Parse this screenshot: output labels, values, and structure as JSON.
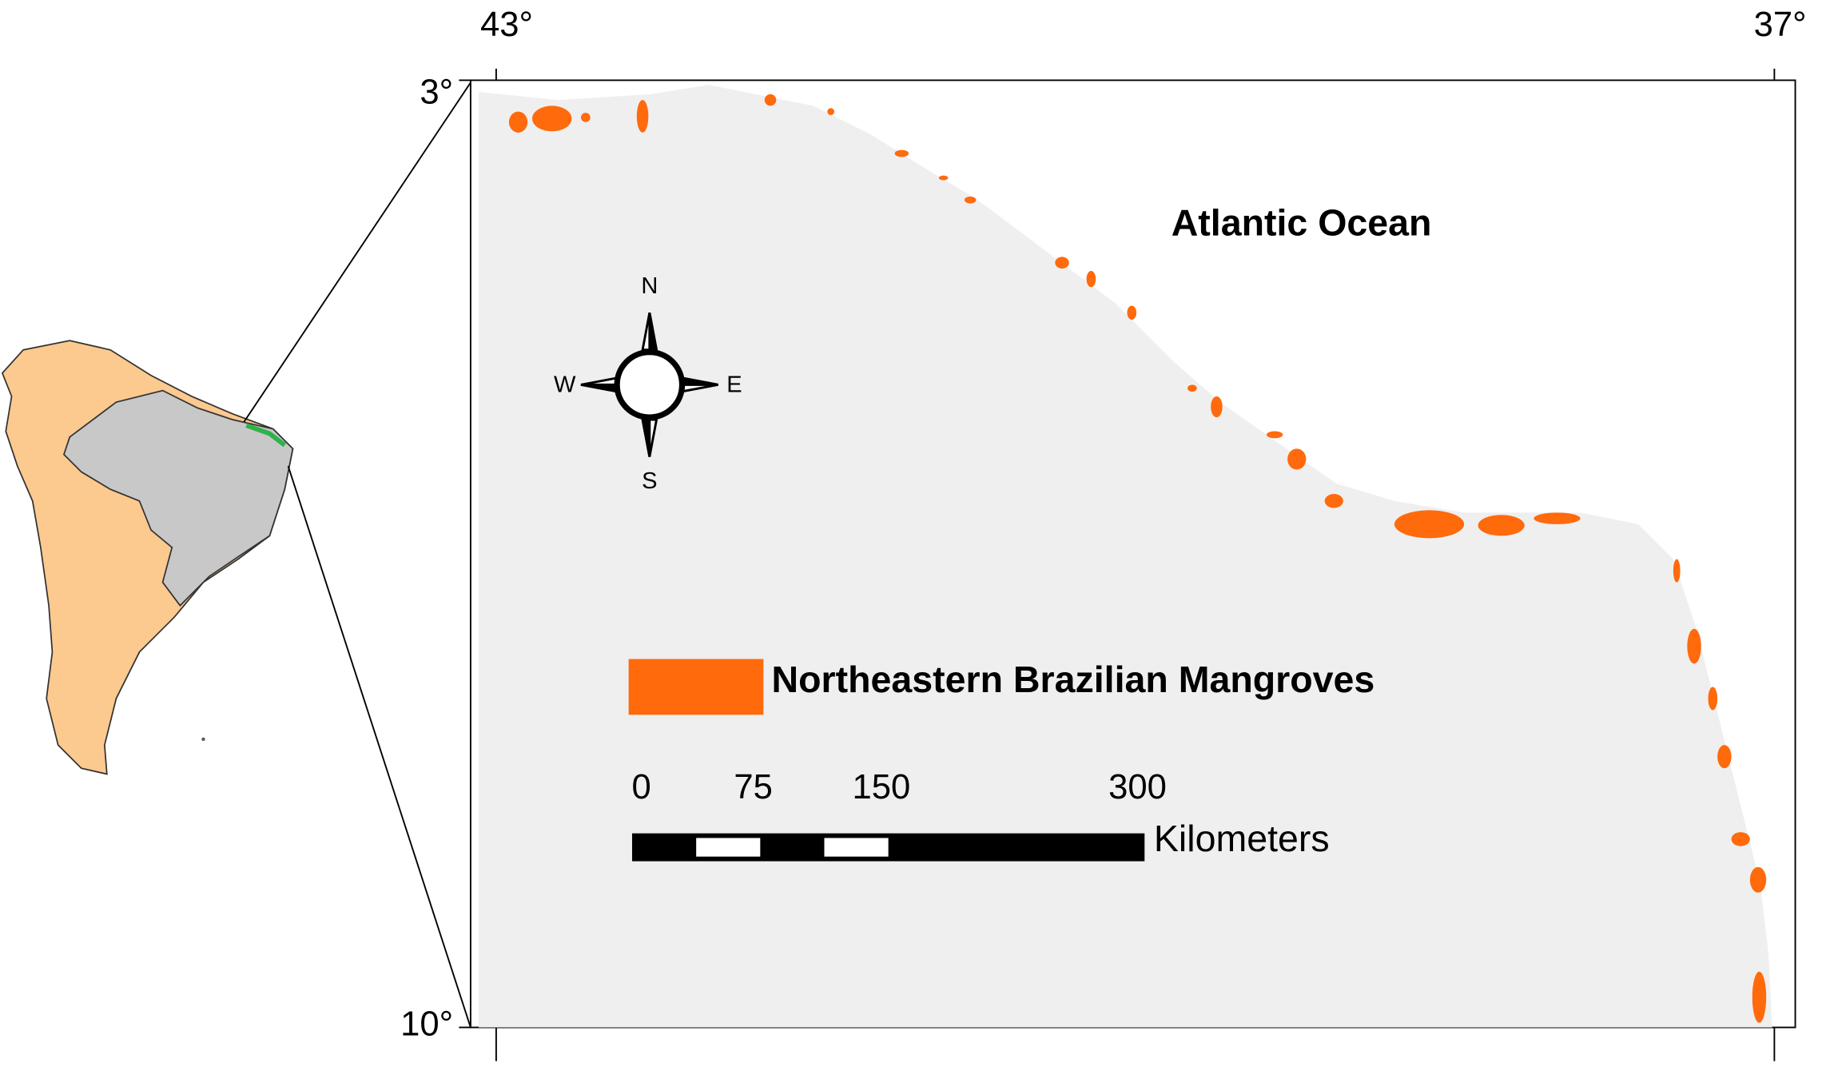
{
  "map": {
    "longitude_labels": [
      "43°",
      "37°"
    ],
    "latitude_labels": [
      "3°",
      "10°"
    ],
    "ocean_label": "Atlantic Ocean",
    "compass": {
      "n": "N",
      "s": "S",
      "e": "E",
      "w": "W"
    },
    "legend": {
      "label": "Northeastern Brazilian Mangroves",
      "color": "#ff6a0d"
    },
    "scale_bar": {
      "ticks": [
        0,
        75,
        150,
        300
      ],
      "unit": "Kilometers"
    }
  }
}
